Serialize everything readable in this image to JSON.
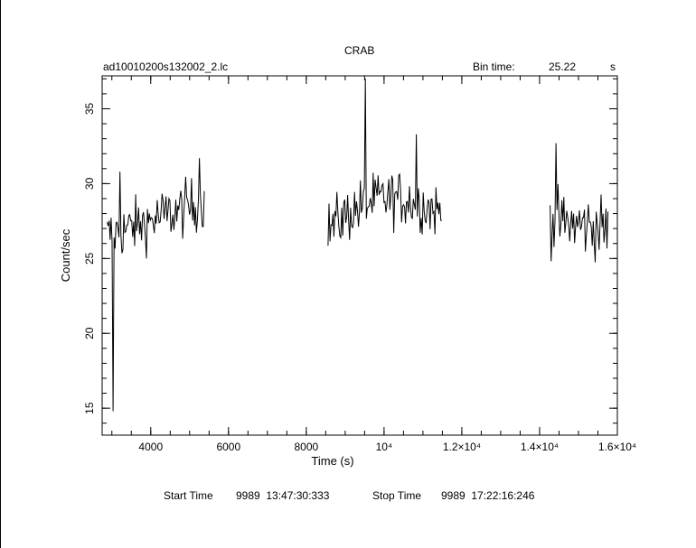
{
  "chart_data": {
    "type": "line",
    "title": "CRAB",
    "subtitle_left": "ad10010200s132002_2.lc",
    "bin_time_label": "Bin time:",
    "bin_time_value": "25.22",
    "bin_time_unit": "s",
    "xlabel": "Time (s)",
    "ylabel": "Count/sec",
    "xlim": [
      2750,
      16000
    ],
    "ylim": [
      13.2,
      37.2
    ],
    "x_ticks": [
      {
        "value": 4000,
        "label": "4000"
      },
      {
        "value": 6000,
        "label": "6000"
      },
      {
        "value": 8000,
        "label": "8000"
      },
      {
        "value": 10000,
        "label": "10⁴"
      },
      {
        "value": 12000,
        "label": "1.2×10⁴"
      },
      {
        "value": 14000,
        "label": "1.4×10⁴"
      },
      {
        "value": 16000,
        "label": "1.6×10⁴"
      }
    ],
    "y_ticks": [
      {
        "value": 15,
        "label": "15"
      },
      {
        "value": 20,
        "label": "20"
      },
      {
        "value": 25,
        "label": "25"
      },
      {
        "value": 30,
        "label": "30"
      },
      {
        "value": 35,
        "label": "35"
      }
    ],
    "segments": [
      {
        "x_start": 2880,
        "x_end": 5380,
        "y_start": 26.5,
        "y_end": 28.8,
        "noise": 1.7,
        "spikes": [
          {
            "x": 3020,
            "y": 14.8
          },
          {
            "x": 3220,
            "y": 30.8
          },
          {
            "x": 5250,
            "y": 31.7
          }
        ]
      },
      {
        "x_start": 8560,
        "x_end": 11500,
        "y_start": 27.0,
        "y_end": 28.0,
        "peak": 29.5,
        "noise": 1.7,
        "spikes": [
          {
            "x": 9520,
            "y": 37.0
          },
          {
            "x": 10820,
            "y": 33.3
          }
        ]
      },
      {
        "x_start": 14270,
        "x_end": 15770,
        "y_start": 27.5,
        "y_end": 27.0,
        "noise": 1.9,
        "spikes": [
          {
            "x": 14420,
            "y": 32.7
          }
        ]
      }
    ],
    "footer": {
      "start_label": "Start Time",
      "start_value": "9989  13:47:30:333",
      "stop_label": "Stop Time",
      "stop_value": "9989  17:22:16:246"
    }
  }
}
